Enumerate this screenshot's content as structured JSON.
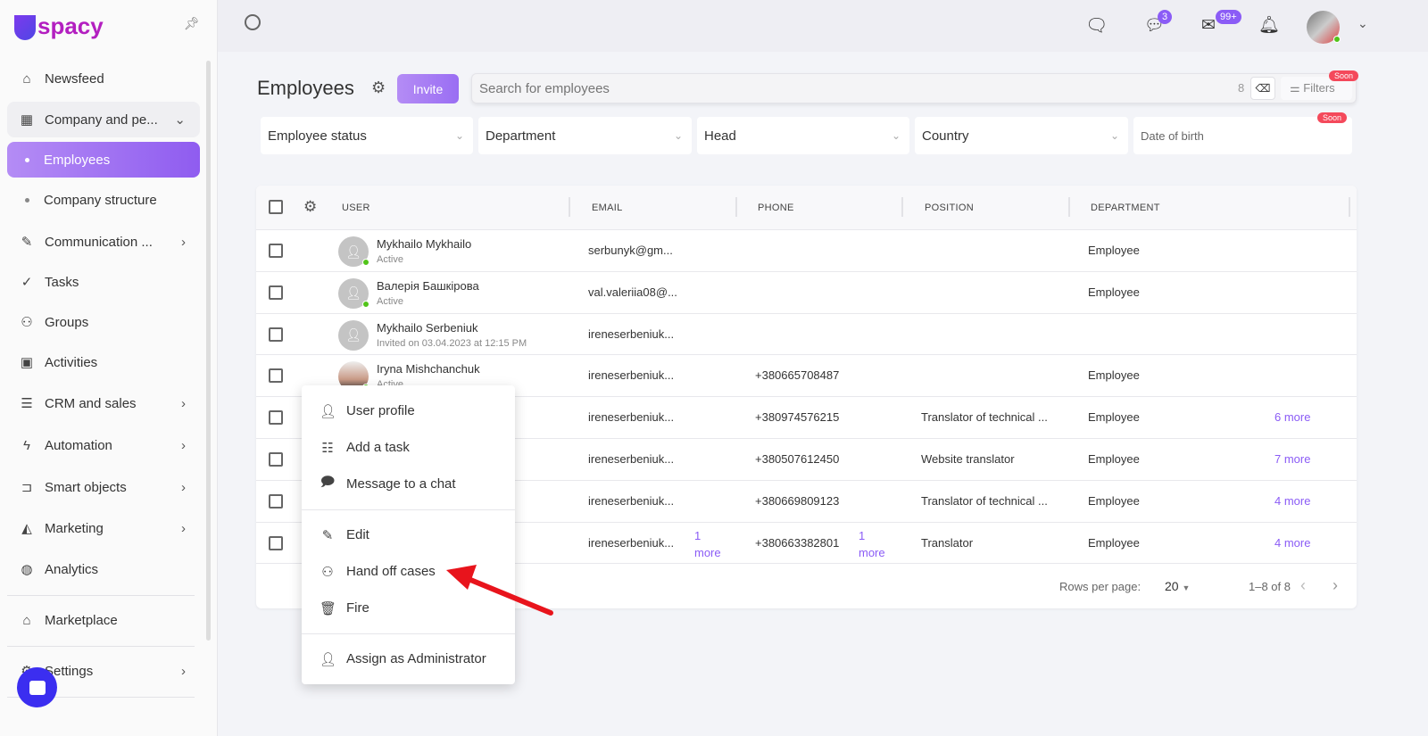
{
  "app": {
    "logo": "Uspacy"
  },
  "sidebar": {
    "items": [
      {
        "label": "Newsfeed",
        "icon": "home-icon"
      },
      {
        "label": "Company and pe...",
        "icon": "building-icon"
      },
      {
        "label": "Employees"
      },
      {
        "label": "Company structure"
      },
      {
        "label": "Communication ...",
        "icon": "chat-icon"
      },
      {
        "label": "Tasks",
        "icon": "check-circle-icon"
      },
      {
        "label": "Groups",
        "icon": "users-icon"
      },
      {
        "label": "Activities",
        "icon": "calendar-icon"
      },
      {
        "label": "CRM and sales",
        "icon": "database-icon"
      },
      {
        "label": "Automation",
        "icon": "lightning-icon"
      },
      {
        "label": "Smart objects",
        "icon": "smart-objects-icon"
      },
      {
        "label": "Marketing",
        "icon": "megaphone-icon"
      },
      {
        "label": "Analytics",
        "icon": "chart-icon"
      },
      {
        "label": "Marketplace",
        "icon": "store-icon"
      },
      {
        "label": "Settings",
        "icon": "gear-icon"
      }
    ]
  },
  "topbar": {
    "chat_badge": "3",
    "mail_badge": "99+"
  },
  "page": {
    "title": "Employees",
    "invite": "Invite",
    "search_placeholder": "Search for employees",
    "count": "8",
    "filters": "Filters",
    "soon": "Soon"
  },
  "filters": [
    "Employee status",
    "Department",
    "Head",
    "Country",
    "Date of birth"
  ],
  "table": {
    "headers": [
      "USER",
      "EMAIL",
      "PHONE",
      "POSITION",
      "DEPARTMENT"
    ],
    "rows": [
      {
        "name": "Mykhailo Mykhailo",
        "status": "Active",
        "email": "serbunyk@gm...",
        "phone": "",
        "position": "",
        "department": "Employee",
        "more": ""
      },
      {
        "name": "Валерія Башкірова",
        "status": "Active",
        "email": "val.valeriia08@...",
        "phone": "",
        "position": "",
        "department": "Employee",
        "more": ""
      },
      {
        "name": "Mykhailo Serbeniuk",
        "status": "Invited on 03.04.2023 at 12:15 PM",
        "email": "ireneserbeniuk...",
        "phone": "",
        "position": "",
        "department": "",
        "more": ""
      },
      {
        "name": "Iryna Mishchanchuk",
        "status": "Active",
        "email": "ireneserbeniuk...",
        "phone": "+380665708487",
        "position": "",
        "department": "Employee",
        "more": ""
      },
      {
        "name": "",
        "status": "",
        "email": "ireneserbeniuk...",
        "phone": "+380974576215",
        "position": "Translator of technical ...",
        "department": "Employee",
        "more": "6 more"
      },
      {
        "name": "",
        "status": "",
        "email": "ireneserbeniuk...",
        "phone": "+380507612450",
        "position": "Website translator",
        "department": "Employee",
        "more": "7 more"
      },
      {
        "name": "",
        "status": "",
        "email": "ireneserbeniuk...",
        "phone": "+380669809123",
        "position": "Translator of technical ...",
        "department": "Employee",
        "more": "4 more"
      },
      {
        "name": "",
        "status": "",
        "email": "ireneserbeniuk...",
        "email_more": "1 more",
        "phone": "+380663382801",
        "phone_more": "1 more",
        "position": "Translator",
        "department": "Employee",
        "more": "4 more"
      }
    ],
    "rows_per_page_label": "Rows per page:",
    "rows_per_page": "20",
    "range": "1–8 of 8"
  },
  "context_menu": {
    "items": [
      "User profile",
      "Add a task",
      "Message to a chat",
      "Edit",
      "Hand off cases",
      "Fire",
      "Assign as Administrator"
    ]
  },
  "colors": {
    "accent": "#8b5cf6",
    "soon": "#f4495b",
    "online": "#52c41a",
    "arrow": "#e8141c"
  }
}
